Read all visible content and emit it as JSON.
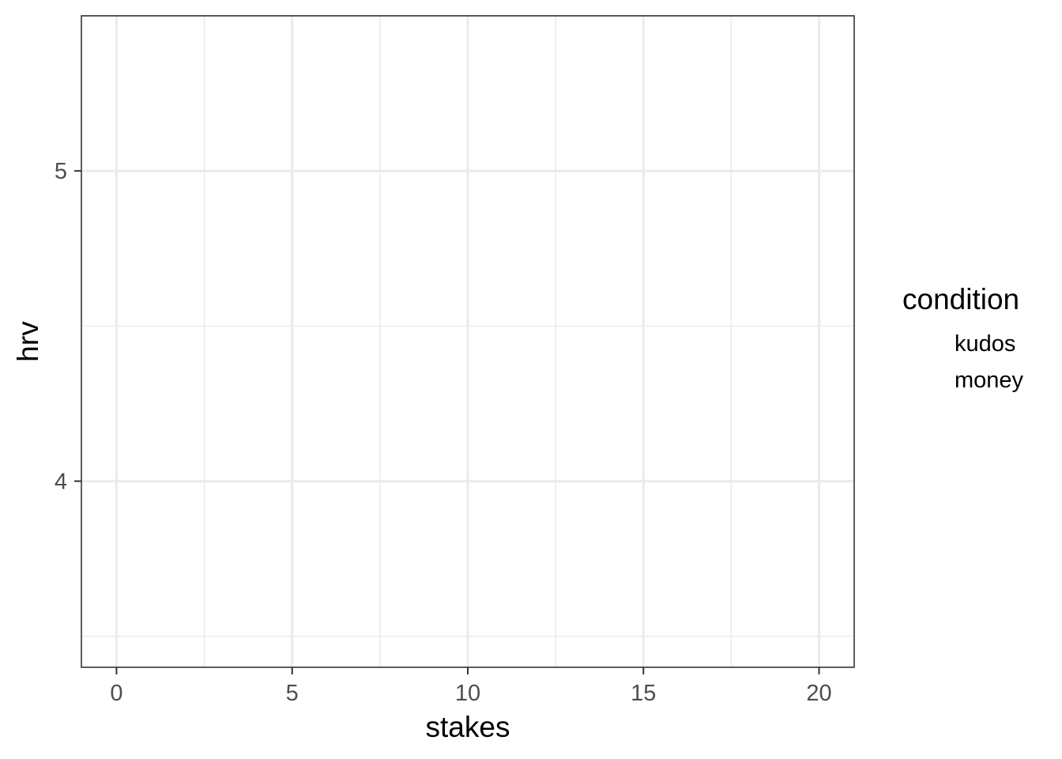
{
  "chart_data": {
    "type": "scatter",
    "title": "",
    "xlabel": "stakes",
    "ylabel": "hrv",
    "xlim": [
      -1,
      21
    ],
    "ylim": [
      3.4,
      5.5
    ],
    "x_ticks": [
      0,
      5,
      10,
      15,
      20
    ],
    "y_ticks": [
      4,
      5
    ],
    "grid": true,
    "legend": {
      "title": "condition",
      "position": "right",
      "entries": [
        "kudos",
        "money"
      ]
    },
    "series": [
      {
        "name": "kudos",
        "x": [],
        "y": []
      },
      {
        "name": "money",
        "x": [],
        "y": []
      }
    ]
  }
}
